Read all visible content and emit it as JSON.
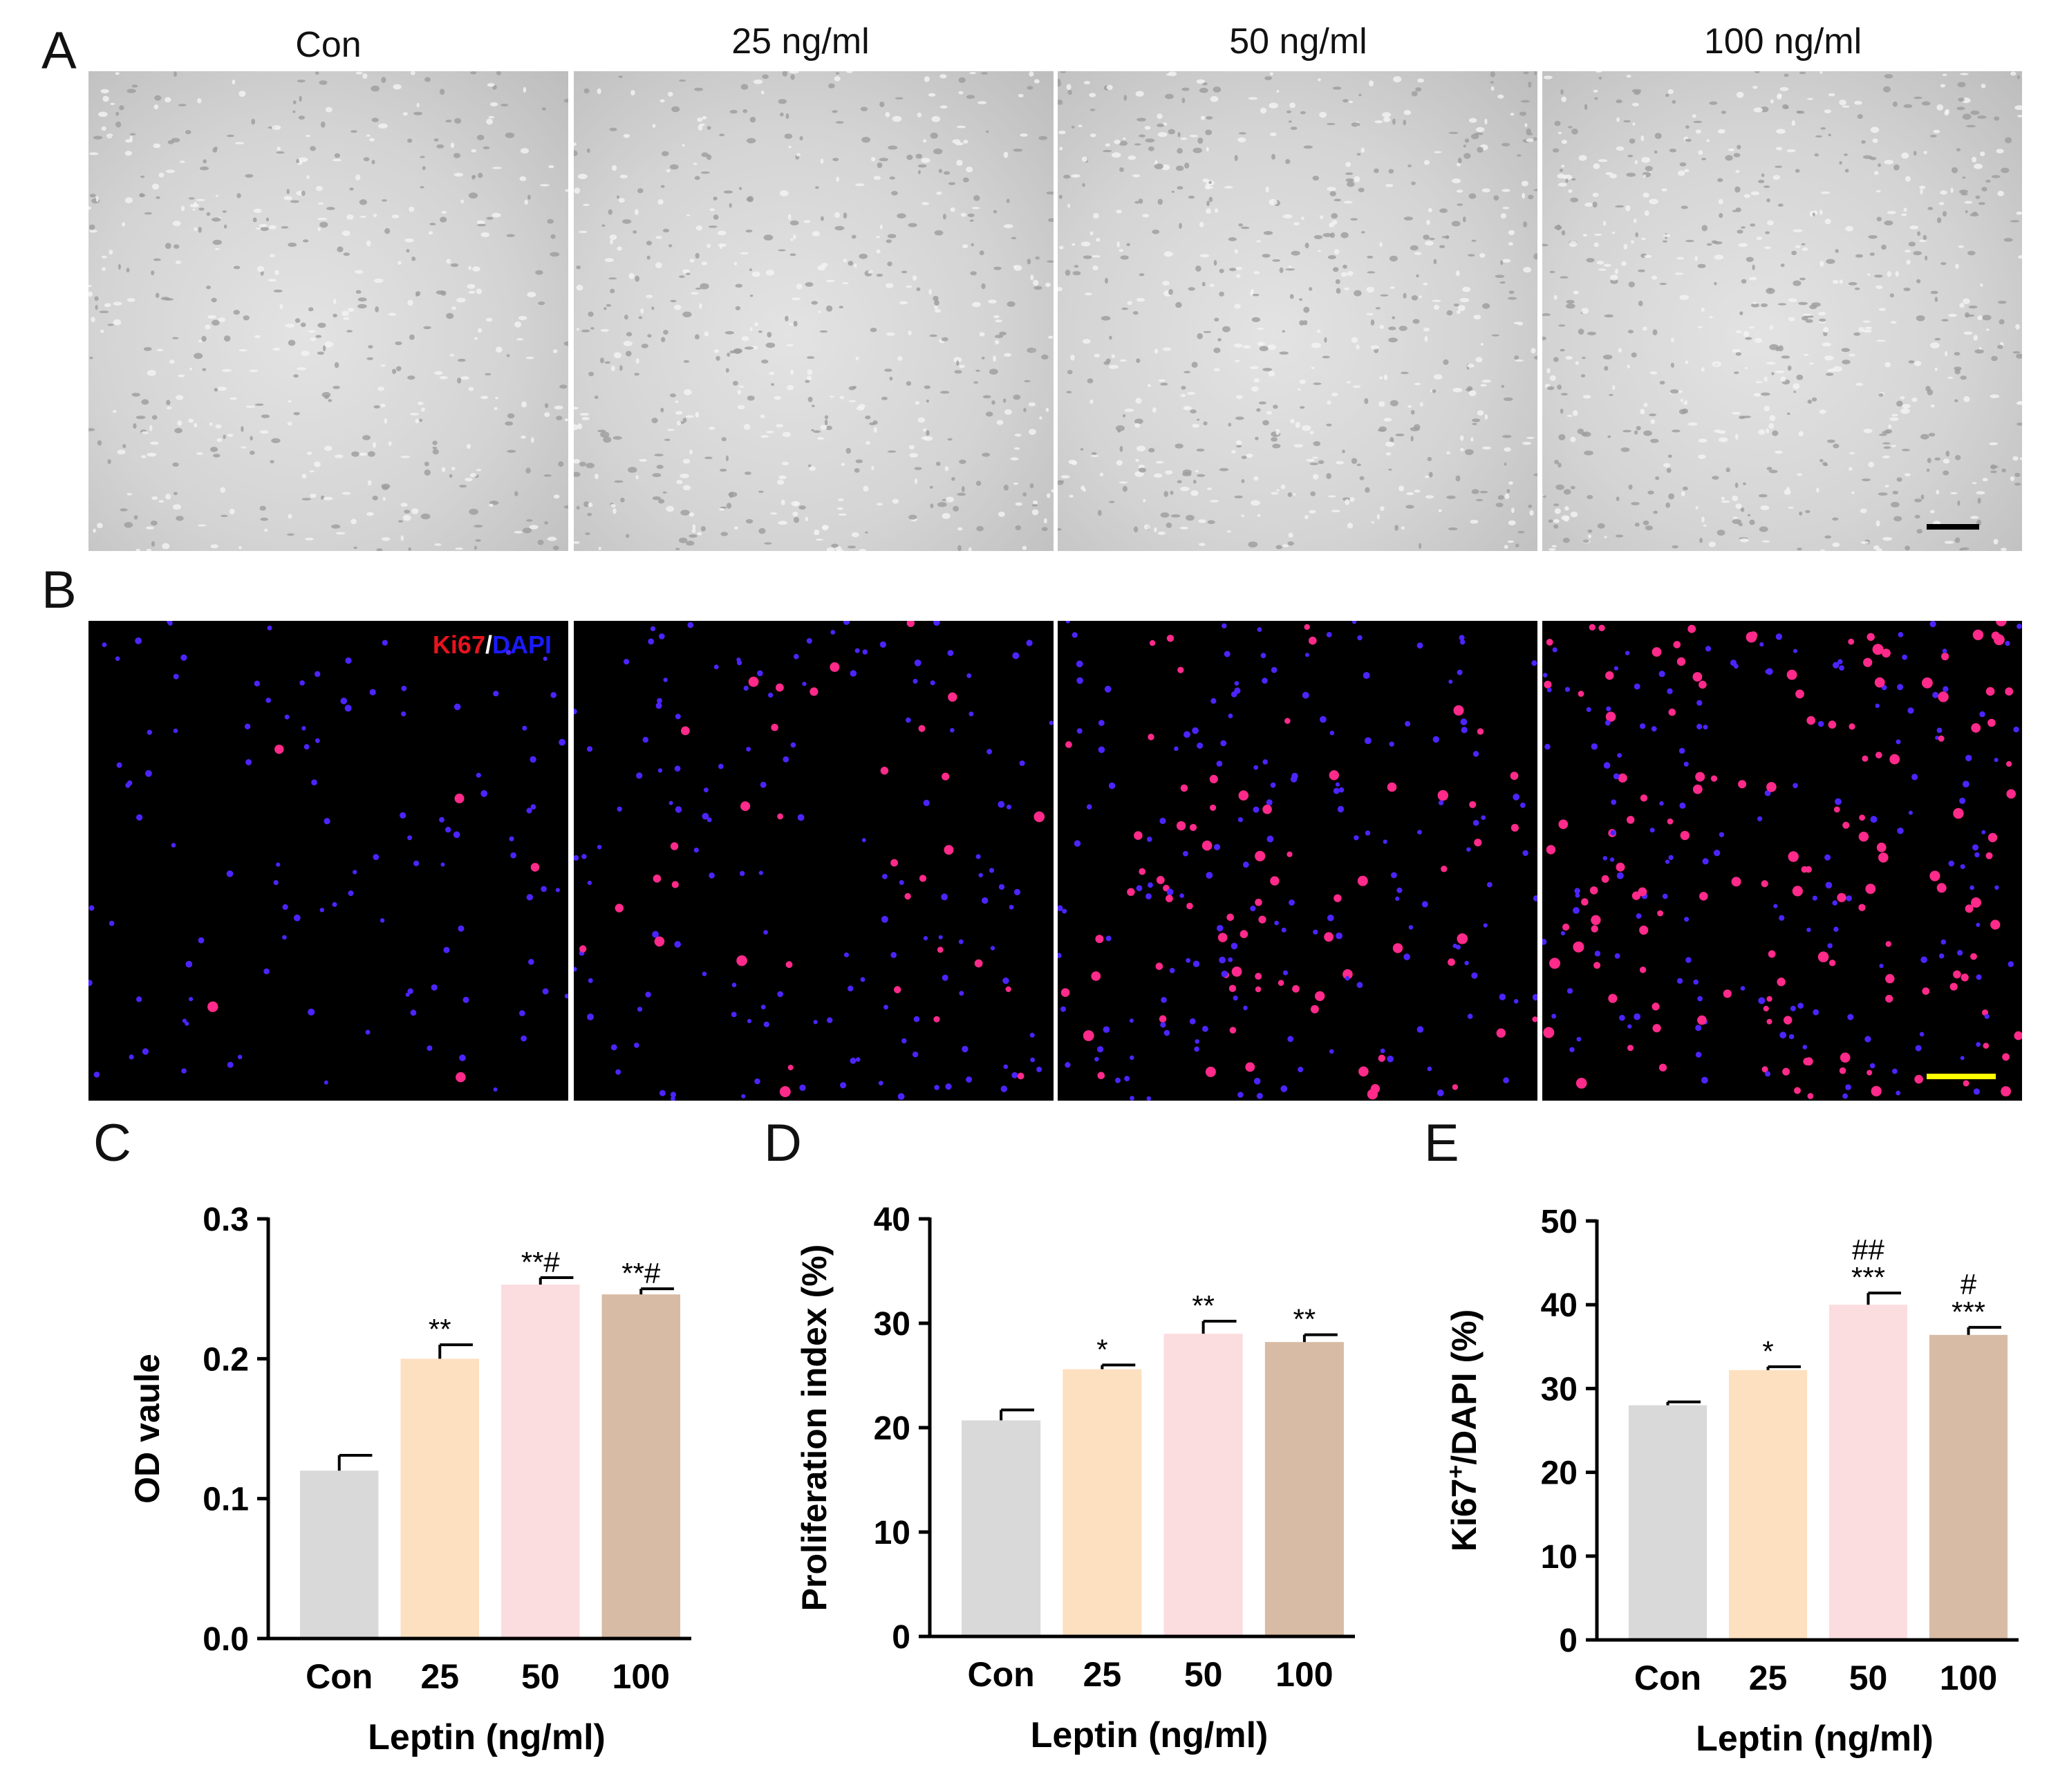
{
  "panels": {
    "a": "A",
    "b": "B",
    "c": "C",
    "d": "D",
    "e": "E"
  },
  "columns": [
    "Con",
    "25 ng/ml",
    "50 ng/ml",
    "100 ng/ml"
  ],
  "stain": {
    "ki67": "Ki67",
    "sep": "/",
    "dapi": "DAPI"
  },
  "colors": {
    "ki67_label": "#e8141e",
    "dapi_label": "#1a1aff",
    "scalebar_bf": "#000000",
    "scalebar_fl": "#ffff00",
    "bar_con": "#d9d9d9",
    "bar_25": "#fde0c0",
    "bar_50": "#fbdcdf",
    "bar_100": "#d8bba4"
  },
  "chart_data": [
    {
      "type": "bar",
      "panel": "C",
      "categories": [
        "Con",
        "25",
        "50",
        "100"
      ],
      "values": [
        0.12,
        0.2,
        0.253,
        0.246
      ],
      "errors": [
        0.011,
        0.01,
        0.005,
        0.004
      ],
      "annotations": [
        "",
        "**",
        "**#",
        "**#"
      ],
      "xlabel": "Leptin (ng/ml)",
      "ylabel": "OD vaule",
      "ylim": [
        0,
        0.3
      ],
      "yticks": [
        "0.0",
        "0.1",
        "0.2",
        "0.3"
      ]
    },
    {
      "type": "bar",
      "panel": "D",
      "categories": [
        "Con",
        "25",
        "50",
        "100"
      ],
      "values": [
        20.7,
        25.6,
        29,
        28.2
      ],
      "errors": [
        1,
        0.4,
        1.2,
        0.7
      ],
      "annotations": [
        "",
        "*",
        "**",
        "**"
      ],
      "xlabel": "Leptin (ng/ml)",
      "ylabel": "Proliferation index (%)",
      "ylim": [
        0,
        40
      ],
      "yticks": [
        "0",
        "10",
        "20",
        "30",
        "40"
      ]
    },
    {
      "type": "bar",
      "panel": "E",
      "categories": [
        "Con",
        "25",
        "50",
        "100"
      ],
      "values": [
        28,
        32.2,
        40,
        36.4
      ],
      "errors": [
        0.4,
        0.4,
        1.4,
        0.9
      ],
      "annotations": [
        "",
        "*",
        "##\n***",
        "#\n***"
      ],
      "xlabel": "Leptin (ng/ml)",
      "ylabel": "Ki67+/DAPI (%)",
      "ylabel_parts": [
        "Ki67",
        "+",
        "/DAPI (%)"
      ],
      "ylim": [
        0,
        50
      ],
      "yticks": [
        "0",
        "10",
        "20",
        "30",
        "40",
        "50"
      ]
    }
  ]
}
